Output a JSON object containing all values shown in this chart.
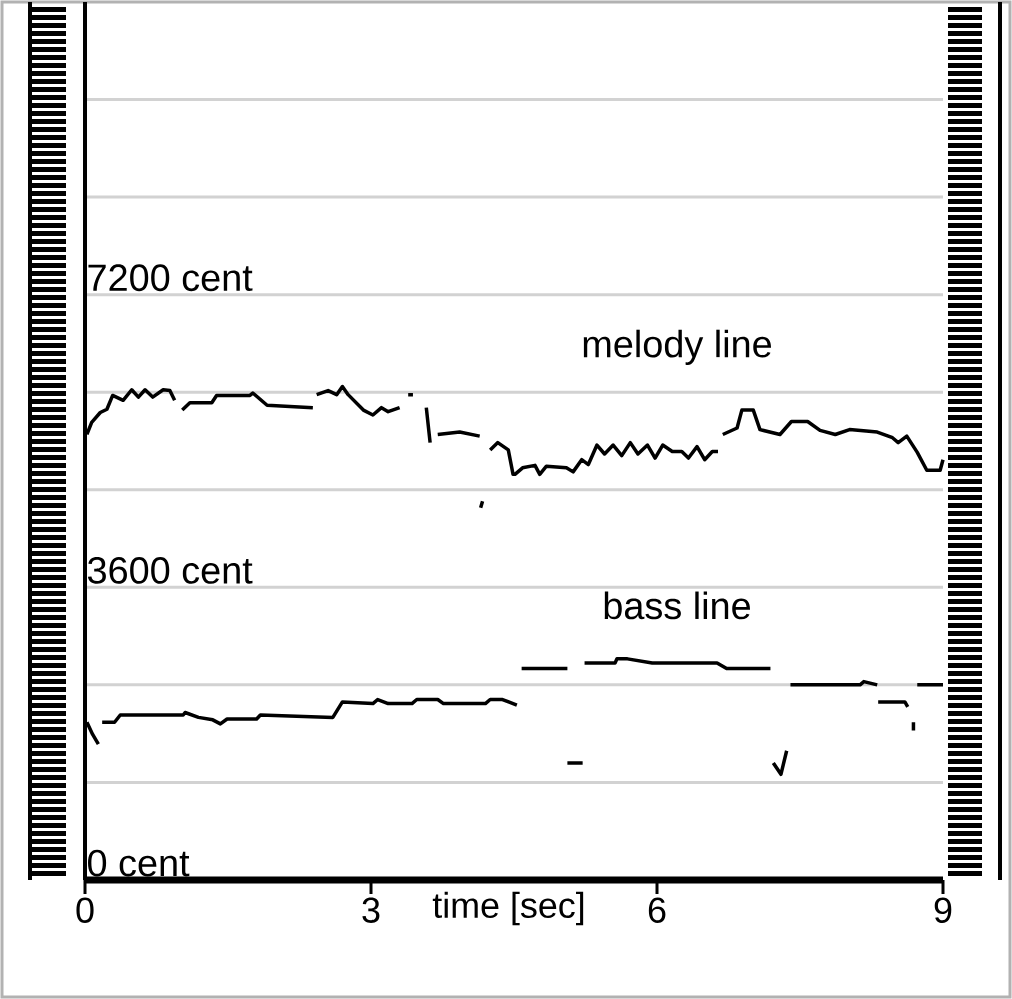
{
  "chart_data": {
    "type": "line",
    "xlabel": "time [sec]",
    "xlim": [
      0,
      9
    ],
    "ylim": [
      0,
      10800
    ],
    "xticks": [
      0,
      3,
      6,
      9
    ],
    "yticks": [
      {
        "value": 0,
        "label": "0 cent"
      },
      {
        "value": 1200,
        "label": null
      },
      {
        "value": 2400,
        "label": null
      },
      {
        "value": 3600,
        "label": "3600 cent"
      },
      {
        "value": 4800,
        "label": null
      },
      {
        "value": 6000,
        "label": null
      },
      {
        "value": 7200,
        "label": "7200 cent"
      },
      {
        "value": 8400,
        "label": null
      },
      {
        "value": 9600,
        "label": null
      }
    ],
    "grid": "y",
    "marker": "none",
    "line_style": "solid",
    "series": [
      {
        "name": "melody line",
        "color": "#000000",
        "x": [
          0.02,
          0.07,
          0.16,
          0.23,
          0.29,
          0.4,
          0.49,
          0.56,
          0.63,
          0.71,
          0.82,
          0.89,
          0.94,
          null,
          1.02,
          1.1,
          1.33,
          1.38,
          1.73,
          1.76,
          1.91,
          2.39,
          null,
          2.43,
          2.55,
          2.64,
          2.7,
          2.76,
          2.92,
          3.02,
          3.11,
          3.18,
          3.3,
          null,
          3.39,
          3.44,
          null,
          3.58,
          3.62,
          null,
          3.7,
          3.93,
          4.14,
          null,
          4.25,
          4.33,
          4.44,
          4.49,
          4.51,
          4.59,
          4.72,
          4.77,
          4.84,
          5.05,
          5.12,
          5.21,
          5.28,
          5.37,
          5.45,
          5.54,
          5.63,
          5.72,
          5.8,
          5.9,
          5.98,
          6.06,
          6.16,
          6.26,
          6.33,
          6.42,
          6.5,
          6.58,
          6.64,
          null,
          6.69,
          6.84,
          6.89,
          7.01,
          7.08,
          7.29,
          7.41,
          7.58,
          7.71,
          7.87,
          8.02,
          8.31,
          8.47,
          8.53,
          8.62,
          8.73,
          8.83,
          8.97,
          9.0,
          null,
          4.15,
          4.17
        ],
        "values": [
          5480,
          5630,
          5750,
          5790,
          5960,
          5900,
          6030,
          5940,
          6030,
          5940,
          6030,
          6020,
          5900,
          null,
          5780,
          5870,
          5870,
          5960,
          5960,
          5990,
          5840,
          5810,
          null,
          5970,
          6020,
          5970,
          6070,
          5970,
          5780,
          5720,
          5810,
          5760,
          5810,
          null,
          5970,
          5970,
          null,
          5810,
          5380,
          null,
          5480,
          5510,
          5460,
          null,
          5290,
          5380,
          5290,
          4990,
          4990,
          5070,
          5100,
          4990,
          5090,
          5070,
          5020,
          5170,
          5110,
          5350,
          5240,
          5350,
          5220,
          5380,
          5240,
          5350,
          5190,
          5350,
          5270,
          5270,
          5190,
          5330,
          5170,
          5270,
          5270,
          null,
          5480,
          5560,
          5780,
          5780,
          5540,
          5480,
          5640,
          5640,
          5530,
          5480,
          5540,
          5510,
          5440,
          5380,
          5460,
          5260,
          5040,
          5040,
          5170,
          null,
          4580,
          4660
        ]
      },
      {
        "name": "bass line",
        "color": "#000000",
        "x": [
          0.02,
          0.08,
          0.14,
          null,
          0.18,
          0.31,
          0.37,
          1.03,
          1.05,
          1.19,
          1.34,
          1.42,
          1.49,
          1.8,
          1.84,
          2.6,
          2.7,
          3.02,
          3.07,
          3.18,
          3.43,
          3.48,
          3.7,
          3.76,
          4.2,
          4.25,
          4.38,
          4.53,
          null,
          4.58,
          5.06,
          null,
          5.24,
          5.56,
          5.58,
          5.69,
          5.95,
          6.63,
          6.73,
          7.19,
          null,
          7.4,
          8.13,
          8.17,
          8.31,
          null,
          8.32,
          8.6,
          8.63,
          null,
          8.73,
          9.0,
          null,
          5.06,
          5.22,
          null,
          7.22,
          7.3,
          7.36,
          null,
          8.69,
          8.69
        ],
        "values": [
          1940,
          1790,
          1670,
          null,
          1940,
          1940,
          2030,
          2030,
          2060,
          2000,
          1970,
          1920,
          1980,
          1980,
          2030,
          2000,
          2190,
          2170,
          2220,
          2170,
          2170,
          2220,
          2220,
          2170,
          2170,
          2220,
          2220,
          2150,
          null,
          2600,
          2600,
          null,
          2670,
          2670,
          2720,
          2720,
          2670,
          2670,
          2600,
          2600,
          null,
          2400,
          2400,
          2440,
          2400,
          null,
          2190,
          2190,
          2130,
          null,
          2400,
          2400,
          null,
          1440,
          1440,
          null,
          1440,
          1300,
          1590,
          null,
          1840,
          1940
        ]
      }
    ]
  }
}
